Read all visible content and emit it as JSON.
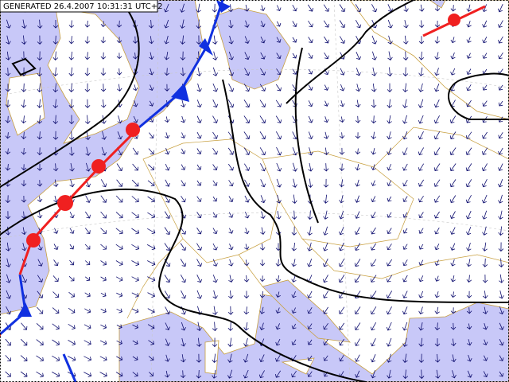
{
  "header": {
    "title": "GENERATED 26.4.2007 10:31:31 UTC+2"
  }
}
